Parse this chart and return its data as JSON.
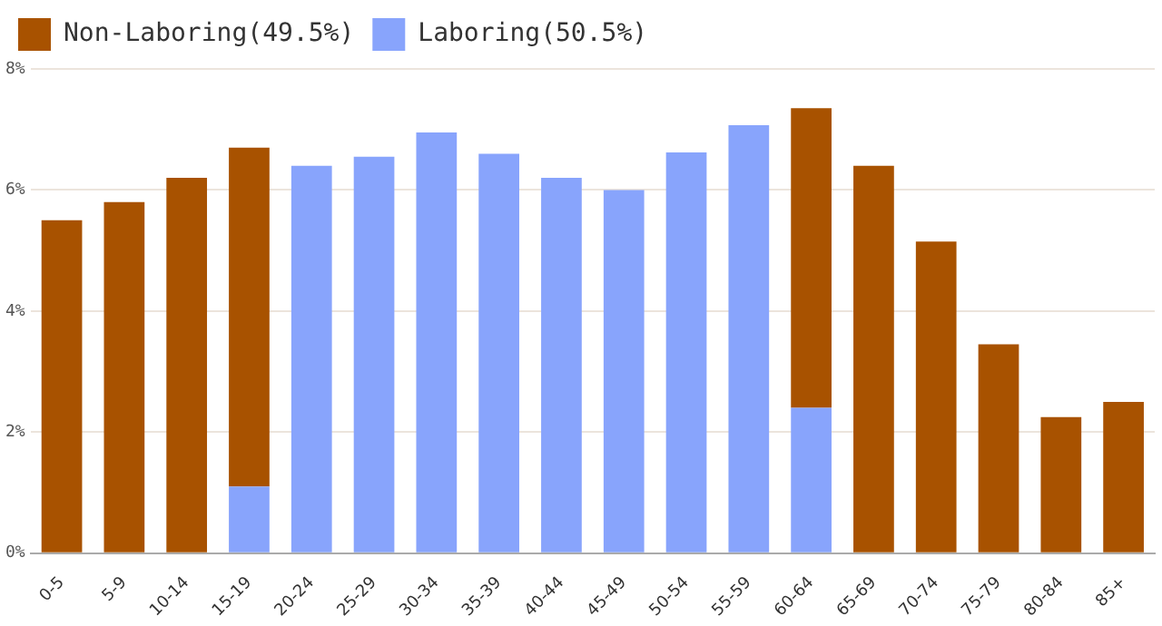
{
  "chart_data": {
    "type": "bar",
    "stacked": true,
    "categories": [
      "0-5",
      "5-9",
      "10-14",
      "15-19",
      "20-24",
      "25-29",
      "30-34",
      "35-39",
      "40-44",
      "45-49",
      "50-54",
      "55-59",
      "60-64",
      "65-69",
      "70-74",
      "75-79",
      "80-84",
      "85+"
    ],
    "series": [
      {
        "name": "Laboring(50.5%)",
        "color": "#88a4fc",
        "values": [
          null,
          null,
          null,
          1.1,
          6.4,
          6.55,
          6.95,
          6.6,
          6.2,
          6.0,
          6.62,
          7.07,
          2.4,
          null,
          null,
          null,
          null,
          null
        ]
      },
      {
        "name": "Non-Laboring(49.5%)",
        "color": "#a85200",
        "values": [
          5.5,
          5.8,
          6.2,
          5.6,
          null,
          null,
          null,
          null,
          null,
          null,
          null,
          null,
          4.95,
          6.4,
          5.15,
          3.45,
          2.25,
          2.5
        ]
      }
    ],
    "ylim": [
      0,
      8
    ],
    "yticks": [
      {
        "value": 0,
        "label": "0%"
      },
      {
        "value": 2,
        "label": "2%"
      },
      {
        "value": 4,
        "label": "4%"
      },
      {
        "value": 6,
        "label": "6%"
      },
      {
        "value": 8,
        "label": "8%"
      }
    ],
    "grid": "y",
    "legend": "top left"
  }
}
